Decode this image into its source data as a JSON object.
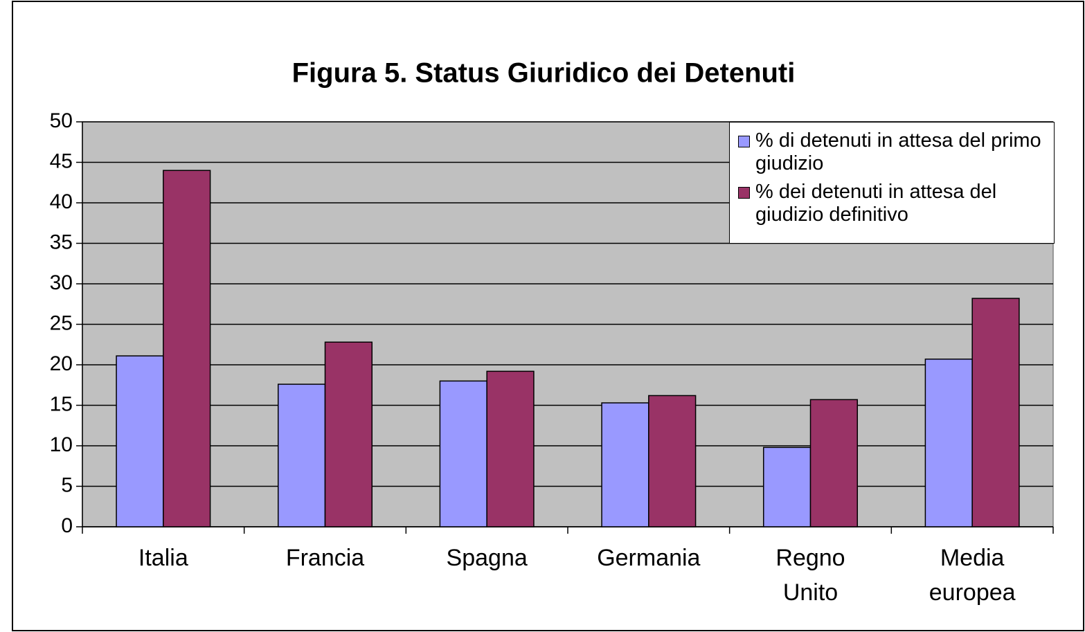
{
  "chart_data": {
    "type": "bar",
    "title": "Figura 5. Status Giuridico dei Detenuti",
    "categories": [
      "Italia",
      "Francia",
      "Spagna",
      "Germania",
      "Regno Unito",
      "Media europea"
    ],
    "series": [
      {
        "name": "% di detenuti in attesa del primo giudizio",
        "color": "#9999ff",
        "values": [
          21.1,
          17.6,
          18.0,
          15.3,
          9.8,
          20.7
        ]
      },
      {
        "name": "% dei detenuti in attesa del giudizio definitivo",
        "color": "#993366",
        "values": [
          44.0,
          22.8,
          19.2,
          16.2,
          15.7,
          28.2
        ]
      }
    ],
    "ylim": [
      0,
      50
    ],
    "yticks": [
      0,
      5,
      10,
      15,
      20,
      25,
      30,
      35,
      40,
      45,
      50
    ],
    "grid": true,
    "legend": "upper right"
  }
}
